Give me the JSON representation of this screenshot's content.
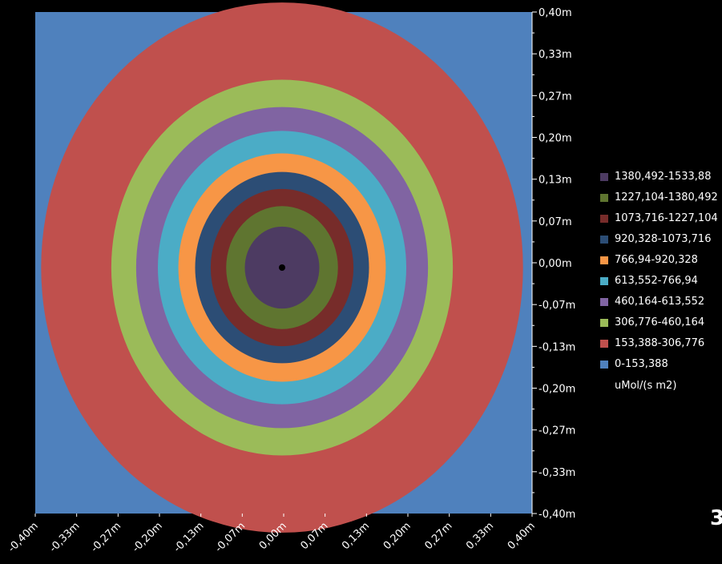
{
  "chart_data": {
    "type": "heatmap",
    "description_units": "m",
    "xlim": [
      -0.4,
      0.4
    ],
    "ylim": [
      -0.4,
      0.4
    ],
    "x_ticks": [
      "-0,40m",
      "-0,33m",
      "-0,27m",
      "-0,20m",
      "-0,13m",
      "-0,07m",
      "0,00m",
      "0,07m",
      "0,13m",
      "0,20m",
      "0,27m",
      "0,33m",
      "0,40m"
    ],
    "y_ticks": [
      "0,40m",
      "0,33m",
      "0,27m",
      "0,20m",
      "0,13m",
      "0,07m",
      "0,00m",
      "-0,07m",
      "-0,13m",
      "-0,20m",
      "-0,27m",
      "-0,33m",
      "-0,40m"
    ],
    "center": [
      0.0,
      0.0
    ],
    "rings": [
      {
        "range": "0-153,388",
        "color": "#4f81bd",
        "outer_radius_m": null
      },
      {
        "range": "153,388-306,776",
        "color": "#c0504d",
        "outer_radius_m": 0.388
      },
      {
        "range": "306,776-460,164",
        "color": "#9bbb59",
        "outer_radius_m": 0.275
      },
      {
        "range": "460,164-613,552",
        "color": "#8064a2",
        "outer_radius_m": 0.235
      },
      {
        "range": "613,552-766,94",
        "color": "#4bacc6",
        "outer_radius_m": 0.2
      },
      {
        "range": "766,94-920,328",
        "color": "#f79646",
        "outer_radius_m": 0.167
      },
      {
        "range": "920,328-1073,716",
        "color": "#2c4d75",
        "outer_radius_m": 0.14
      },
      {
        "range": "1073,716-1227,104",
        "color": "#772c2a",
        "outer_radius_m": 0.115
      },
      {
        "range": "1227,104-1380,492",
        "color": "#5f7530",
        "outer_radius_m": 0.09
      },
      {
        "range": "1380,492-1533,88",
        "color": "#4d3b62",
        "outer_radius_m": 0.06
      }
    ],
    "legend_order": [
      "1380,492-1533,88",
      "1227,104-1380,492",
      "1073,716-1227,104",
      "920,328-1073,716",
      "766,94-920,328",
      "613,552-766,94",
      "460,164-613,552",
      "306,776-460,164",
      "153,388-306,776",
      "0-153,388"
    ],
    "legend_unit": "uMol/(s m2)",
    "legend_placement": "right"
  },
  "corner_mark": "3"
}
